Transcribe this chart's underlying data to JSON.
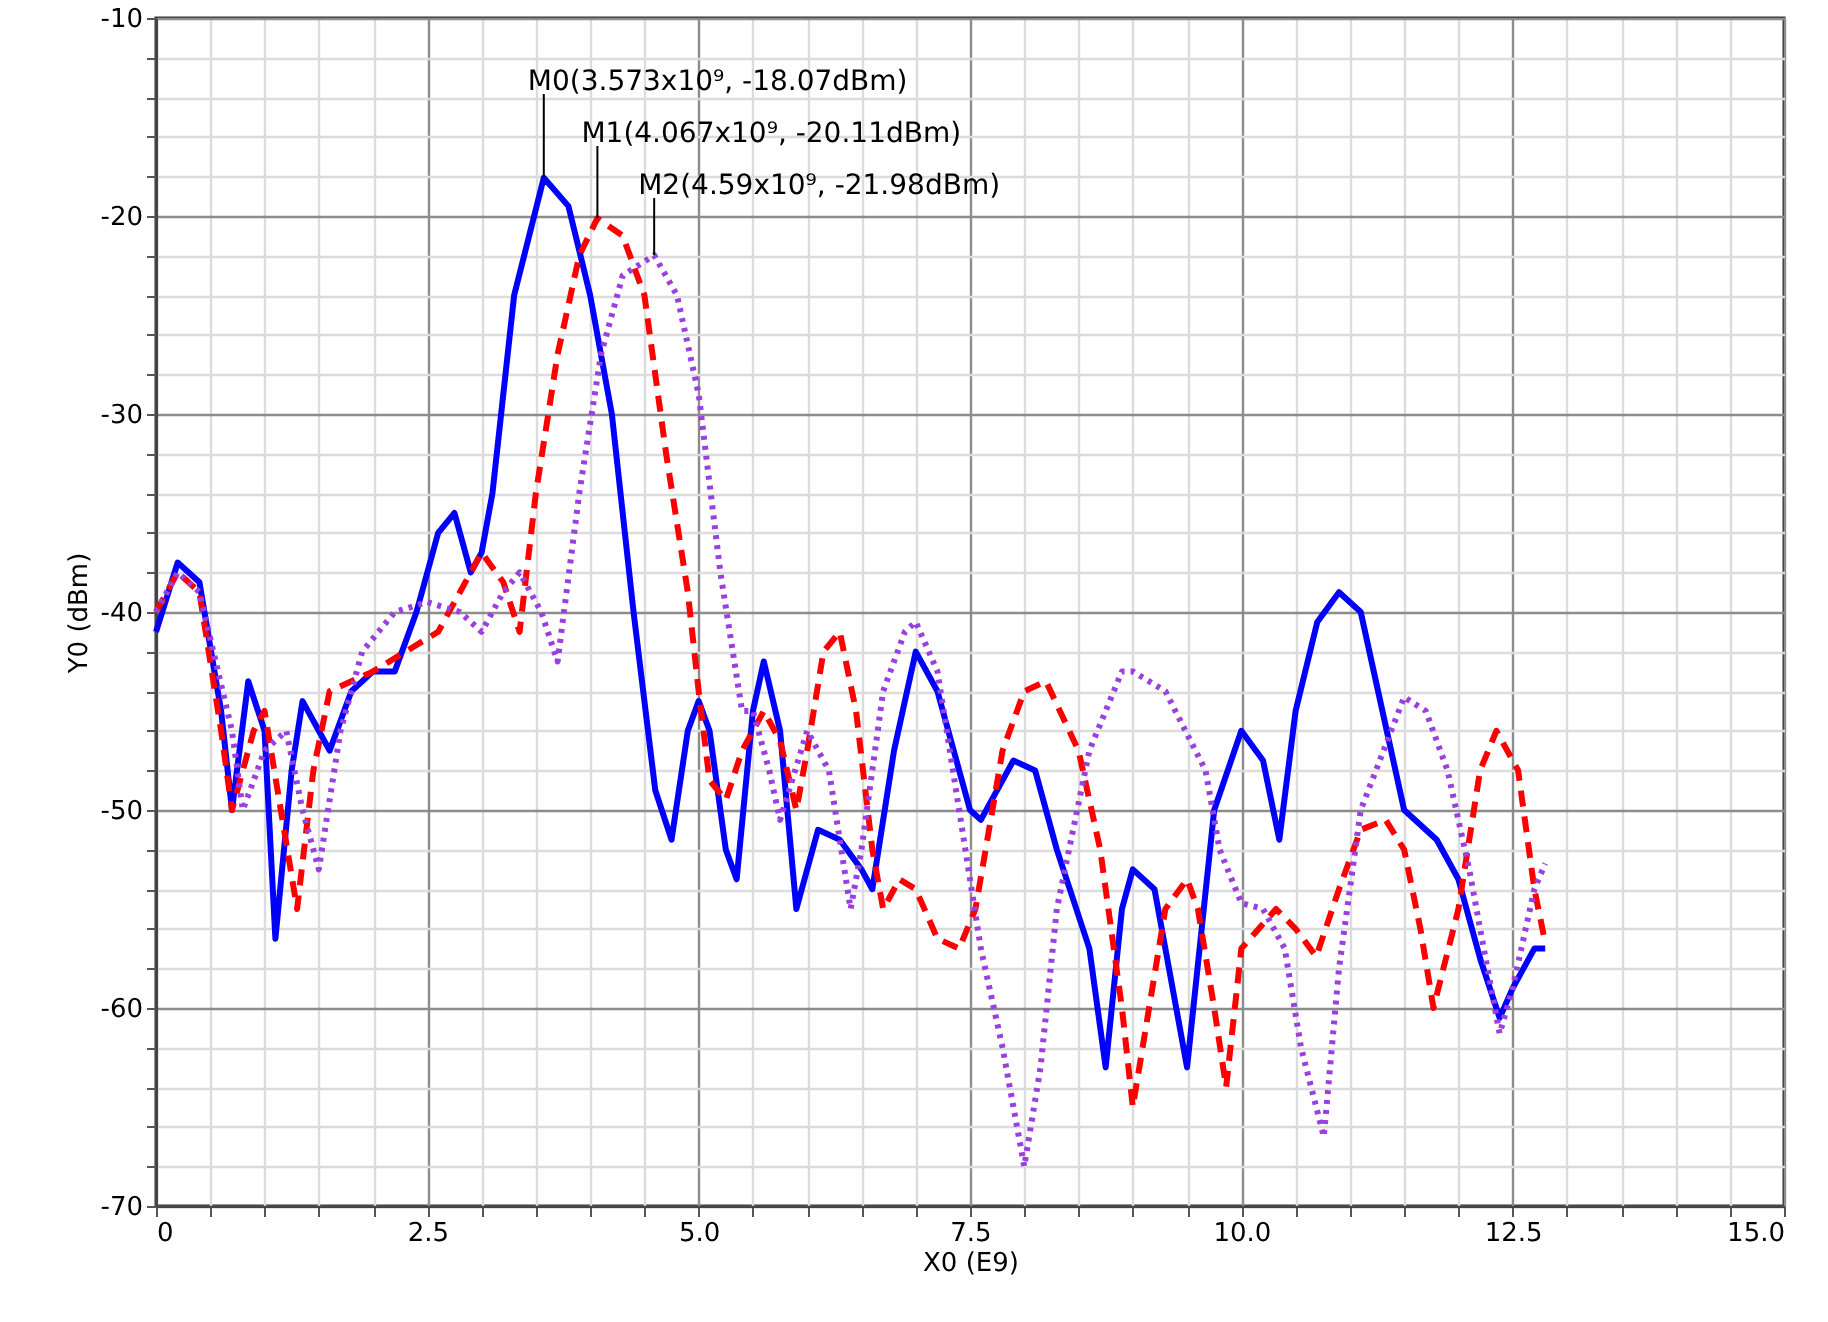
{
  "chart_data": {
    "type": "line",
    "xlabel": "X0 (E9)",
    "ylabel": "Y0 (dBm)",
    "xlim": [
      0,
      15
    ],
    "ylim": [
      -70,
      -10
    ],
    "xticks": [
      0,
      {
        "value": 0.5,
        "label": null
      },
      {
        "value": 1,
        "label": null
      },
      {
        "value": 1.5,
        "label": null
      },
      {
        "value": 2,
        "label": null
      },
      2.5,
      {
        "value": 3,
        "label": null
      },
      {
        "value": 3.5,
        "label": null
      },
      {
        "value": 4,
        "label": null
      },
      {
        "value": 4.5,
        "label": null
      },
      {
        "value": 5,
        "label": "5.0"
      },
      {
        "value": 5.5,
        "label": null
      },
      {
        "value": 6,
        "label": null
      },
      {
        "value": 6.5,
        "label": null
      },
      {
        "value": 7,
        "label": null
      },
      7.5,
      {
        "value": 8,
        "label": null
      },
      {
        "value": 8.5,
        "label": null
      },
      {
        "value": 9,
        "label": null
      },
      {
        "value": 9.5,
        "label": null
      },
      {
        "value": 10,
        "label": "10.0"
      },
      {
        "value": 10.5,
        "label": null
      },
      {
        "value": 11,
        "label": null
      },
      {
        "value": 11.5,
        "label": null
      },
      {
        "value": 12,
        "label": null
      },
      12.5,
      {
        "value": 13,
        "label": null
      },
      {
        "value": 13.5,
        "label": null
      },
      {
        "value": 14,
        "label": null
      },
      {
        "value": 14.5,
        "label": null
      },
      {
        "value": 15,
        "label": "15.0"
      }
    ],
    "yticks": [
      -70,
      {
        "value": -68,
        "label": null
      },
      {
        "value": -66,
        "label": null
      },
      {
        "value": -64,
        "label": null
      },
      {
        "value": -62,
        "label": null
      },
      -60,
      {
        "value": -58,
        "label": null
      },
      {
        "value": -56,
        "label": null
      },
      {
        "value": -54,
        "label": null
      },
      {
        "value": -52,
        "label": null
      },
      -50,
      {
        "value": -48,
        "label": null
      },
      {
        "value": -46,
        "label": null
      },
      {
        "value": -44,
        "label": null
      },
      {
        "value": -42,
        "label": null
      },
      -40,
      {
        "value": -38,
        "label": null
      },
      {
        "value": -36,
        "label": null
      },
      {
        "value": -34,
        "label": null
      },
      {
        "value": -32,
        "label": null
      },
      -30,
      {
        "value": -28,
        "label": null
      },
      {
        "value": -26,
        "label": null
      },
      {
        "value": -24,
        "label": null
      },
      {
        "value": -22,
        "label": null
      },
      -20,
      {
        "value": -18,
        "label": null
      },
      {
        "value": -16,
        "label": null
      },
      {
        "value": -14,
        "label": null
      },
      {
        "value": -12,
        "label": null
      },
      -10
    ],
    "grid": true,
    "series": [
      {
        "color": "#0000ff",
        "line_style": "solid",
        "x": [
          0,
          0.2,
          0.4,
          0.6,
          0.7,
          0.85,
          1.0,
          1.1,
          1.25,
          1.35,
          1.5,
          1.6,
          1.8,
          2.0,
          2.2,
          2.4,
          2.6,
          2.75,
          2.9,
          3.0,
          3.1,
          3.3,
          3.573,
          3.8,
          4.0,
          4.2,
          4.4,
          4.6,
          4.75,
          4.9,
          5.0,
          5.1,
          5.25,
          5.35,
          5.5,
          5.6,
          5.75,
          5.9,
          6.1,
          6.3,
          6.5,
          6.6,
          6.8,
          7.0,
          7.2,
          7.5,
          7.6,
          7.9,
          8.1,
          8.3,
          8.6,
          8.75,
          8.9,
          9.0,
          9.2,
          9.4,
          9.5,
          9.75,
          10.0,
          10.2,
          10.35,
          10.5,
          10.7,
          10.9,
          11.1,
          11.3,
          11.5,
          11.8,
          12.0,
          12.2,
          12.38,
          12.5,
          12.7,
          12.8
        ],
        "values": [
          -41,
          -37.5,
          -38.5,
          -45,
          -50,
          -43.5,
          -46,
          -56.5,
          -48,
          -44.5,
          -46,
          -47,
          -44,
          -43,
          -43,
          -40,
          -36,
          -35,
          -38,
          -37,
          -34,
          -24,
          -18.07,
          -19.5,
          -24,
          -30,
          -40,
          -49,
          -51.5,
          -46,
          -44.5,
          -46,
          -52,
          -53.5,
          -45,
          -42.5,
          -46,
          -55,
          -51,
          -51.5,
          -53,
          -54,
          -47,
          -42,
          -44,
          -50,
          -50.5,
          -47.5,
          -48,
          -52,
          -57,
          -63,
          -55,
          -53,
          -54,
          -60,
          -63,
          -50,
          -46,
          -47.5,
          -51.5,
          -45,
          -40.5,
          -39,
          -40,
          -45,
          -50,
          -51.5,
          -53.5,
          -57.5,
          -60.5,
          -59,
          -57,
          -57
        ]
      },
      {
        "color": "#ff0000",
        "line_style": "dashed",
        "x": [
          0,
          0.2,
          0.4,
          0.6,
          0.7,
          0.9,
          1.0,
          1.15,
          1.3,
          1.45,
          1.6,
          1.8,
          2.0,
          2.3,
          2.6,
          2.8,
          3.0,
          3.2,
          3.35,
          3.5,
          3.7,
          3.9,
          4.067,
          4.3,
          4.5,
          4.7,
          4.9,
          5.0,
          5.1,
          5.25,
          5.4,
          5.6,
          5.75,
          5.9,
          6.0,
          6.15,
          6.3,
          6.45,
          6.6,
          6.7,
          6.85,
          7.0,
          7.2,
          7.4,
          7.55,
          7.8,
          8.0,
          8.2,
          8.5,
          8.7,
          8.9,
          9.0,
          9.15,
          9.3,
          9.5,
          9.6,
          9.75,
          9.86,
          10.0,
          10.32,
          10.5,
          10.69,
          10.9,
          11.1,
          11.33,
          11.5,
          11.65,
          11.77,
          12.0,
          12.2,
          12.35,
          12.55,
          12.7,
          12.8
        ],
        "values": [
          -40,
          -38,
          -39,
          -46,
          -50,
          -46,
          -45,
          -50,
          -55,
          -48,
          -44,
          -43.5,
          -43,
          -42,
          -41,
          -39,
          -37,
          -38.5,
          -41,
          -34,
          -27,
          -22,
          -20.11,
          -21,
          -24,
          -32,
          -39,
          -44,
          -48.5,
          -49.5,
          -47,
          -45,
          -46.5,
          -50,
          -47,
          -42,
          -41,
          -45,
          -52,
          -55,
          -53.5,
          -54,
          -56.5,
          -57,
          -55,
          -47,
          -44,
          -43.5,
          -47,
          -52,
          -60,
          -65,
          -60,
          -55,
          -53.5,
          -55,
          -60,
          -64,
          -57,
          -55,
          -56,
          -57.4,
          -54,
          -51,
          -50.5,
          -52,
          -56,
          -60,
          -55,
          -48,
          -46,
          -48,
          -54,
          -56.7
        ]
      },
      {
        "color": "#9b40e0",
        "line_style": "dotted",
        "x": [
          0,
          0.2,
          0.4,
          0.7,
          0.8,
          1.0,
          1.2,
          1.35,
          1.5,
          1.7,
          1.9,
          2.2,
          2.5,
          2.8,
          3.0,
          3.2,
          3.35,
          3.55,
          3.7,
          3.9,
          4.1,
          4.3,
          4.59,
          4.8,
          5.0,
          5.2,
          5.4,
          5.5,
          5.65,
          5.75,
          6.0,
          6.2,
          6.4,
          6.5,
          6.7,
          6.9,
          7.0,
          7.2,
          7.4,
          7.6,
          7.8,
          8.0,
          8.15,
          8.3,
          8.6,
          8.9,
          9.0,
          9.3,
          9.67,
          9.8,
          10.0,
          10.2,
          10.4,
          10.55,
          10.76,
          10.9,
          11.1,
          11.5,
          11.7,
          11.9,
          12.1,
          12.2,
          12.38,
          12.5,
          12.7,
          12.8
        ],
        "values": [
          -40,
          -38,
          -39,
          -46,
          -50,
          -47,
          -46,
          -50,
          -53,
          -46,
          -42,
          -40,
          -39.5,
          -40,
          -41,
          -39,
          -38,
          -40,
          -42.5,
          -34,
          -27,
          -23,
          -21.98,
          -24,
          -29,
          -38,
          -45,
          -45,
          -48,
          -50.5,
          -46,
          -48,
          -55,
          -52,
          -44,
          -41,
          -40.5,
          -43,
          -50,
          -57,
          -62,
          -68,
          -63,
          -55,
          -47,
          -43,
          -43,
          -44,
          -48,
          -52,
          -54.7,
          -55,
          -57,
          -62,
          -66.5,
          -58,
          -50,
          -44.3,
          -45,
          -48,
          -53,
          -56,
          -61.3,
          -59,
          -54,
          -52.7
        ]
      }
    ],
    "annotations": [
      {
        "text": "M0(3.573x10⁹, -18.07dBm)",
        "x": 3.573,
        "y": -18.07
      },
      {
        "text": "M1(4.067x10⁹, -20.11dBm)",
        "x": 4.067,
        "y": -20.11
      },
      {
        "text": "M2(4.59x10⁹, -21.98dBm)",
        "x": 4.59,
        "y": -21.98
      }
    ]
  }
}
